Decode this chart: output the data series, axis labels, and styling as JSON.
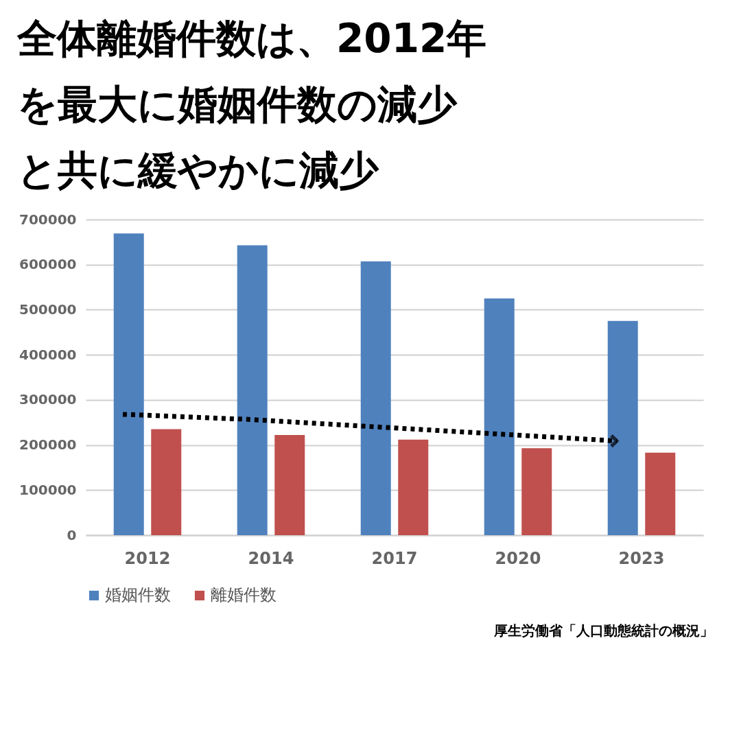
{
  "chart_data": {
    "type": "bar",
    "title": "全体離婚件数は、2012年を最大に婚姻件数の減少と共に緩やかに減少",
    "categories": [
      "2012",
      "2014",
      "2017",
      "2020",
      "2023"
    ],
    "series": [
      {
        "name": "婚姻件数",
        "color": "#4f81bd",
        "values": [
          669000,
          643000,
          607000,
          525000,
          475000
        ]
      },
      {
        "name": "離婚件数",
        "color": "#c0504d",
        "values": [
          235000,
          222000,
          212000,
          193000,
          183000
        ]
      },
      {
        "type": "line",
        "color": "#000000",
        "line_style": "dotted",
        "values": [
          268000,
          257000,
          241000,
          225000,
          209000
        ]
      }
    ],
    "ylim": [
      0,
      700000
    ],
    "yticks": [
      0,
      100000,
      200000,
      300000,
      400000,
      500000,
      600000,
      700000
    ],
    "grid": "y",
    "legend": "bottom",
    "annotations": [
      "厚生労働省「人口動態統計の概況」"
    ]
  }
}
